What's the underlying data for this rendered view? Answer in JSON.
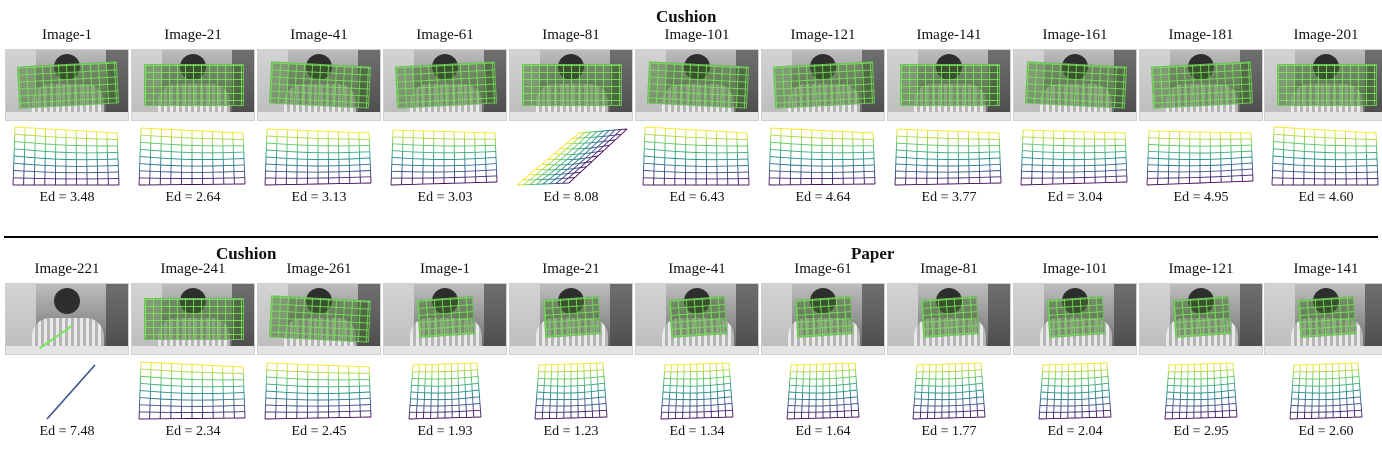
{
  "titles": {
    "top": "Cushion",
    "bottom_left": "Cushion",
    "bottom_right": "Paper"
  },
  "rows": [
    {
      "cells": [
        {
          "label": "Image-1",
          "ed": "Ed = 3.48",
          "object": "cushion",
          "mesh": "cushion"
        },
        {
          "label": "Image-21",
          "ed": "Ed = 2.64",
          "object": "cushion",
          "mesh": "cushion"
        },
        {
          "label": "Image-41",
          "ed": "Ed = 3.13",
          "object": "cushion",
          "mesh": "cushion"
        },
        {
          "label": "Image-61",
          "ed": "Ed = 3.03",
          "object": "cushion",
          "mesh": "cushion"
        },
        {
          "label": "Image-81",
          "ed": "Ed = 8.08",
          "object": "cushion",
          "mesh": "skewed"
        },
        {
          "label": "Image-101",
          "ed": "Ed = 6.43",
          "object": "cushion",
          "mesh": "cushion"
        },
        {
          "label": "Image-121",
          "ed": "Ed = 4.64",
          "object": "cushion",
          "mesh": "cushion"
        },
        {
          "label": "Image-141",
          "ed": "Ed = 3.77",
          "object": "cushion",
          "mesh": "cushion"
        },
        {
          "label": "Image-161",
          "ed": "Ed = 3.04",
          "object": "cushion",
          "mesh": "cushion"
        },
        {
          "label": "Image-181",
          "ed": "Ed = 4.95",
          "object": "cushion",
          "mesh": "cushion"
        },
        {
          "label": "Image-201",
          "ed": "Ed = 4.60",
          "object": "cushion",
          "mesh": "cushion"
        }
      ]
    },
    {
      "cells": [
        {
          "label": "Image-221",
          "ed": "Ed = 7.48",
          "object": "none",
          "mesh": "line"
        },
        {
          "label": "Image-241",
          "ed": "Ed = 2.34",
          "object": "cushion",
          "mesh": "cushion"
        },
        {
          "label": "Image-261",
          "ed": "Ed = 2.45",
          "object": "cushion",
          "mesh": "cushion"
        },
        {
          "label": "Image-1",
          "ed": "Ed = 1.93",
          "object": "paper",
          "mesh": "paper"
        },
        {
          "label": "Image-21",
          "ed": "Ed = 1.23",
          "object": "paper",
          "mesh": "paper"
        },
        {
          "label": "Image-41",
          "ed": "Ed = 1.34",
          "object": "paper",
          "mesh": "paper"
        },
        {
          "label": "Image-61",
          "ed": "Ed = 1.64",
          "object": "paper",
          "mesh": "paper"
        },
        {
          "label": "Image-81",
          "ed": "Ed = 1.77",
          "object": "paper",
          "mesh": "paper"
        },
        {
          "label": "Image-101",
          "ed": "Ed = 2.04",
          "object": "paper",
          "mesh": "paper"
        },
        {
          "label": "Image-121",
          "ed": "Ed = 2.95",
          "object": "paper",
          "mesh": "paper"
        },
        {
          "label": "Image-141",
          "ed": "Ed = 2.60",
          "object": "paper",
          "mesh": "paper"
        }
      ]
    }
  ],
  "colors": {
    "mesh_ramp": [
      "#440154",
      "#3b528b",
      "#21918c",
      "#5ec962",
      "#fde725"
    ],
    "overlay": "#78e65a"
  }
}
